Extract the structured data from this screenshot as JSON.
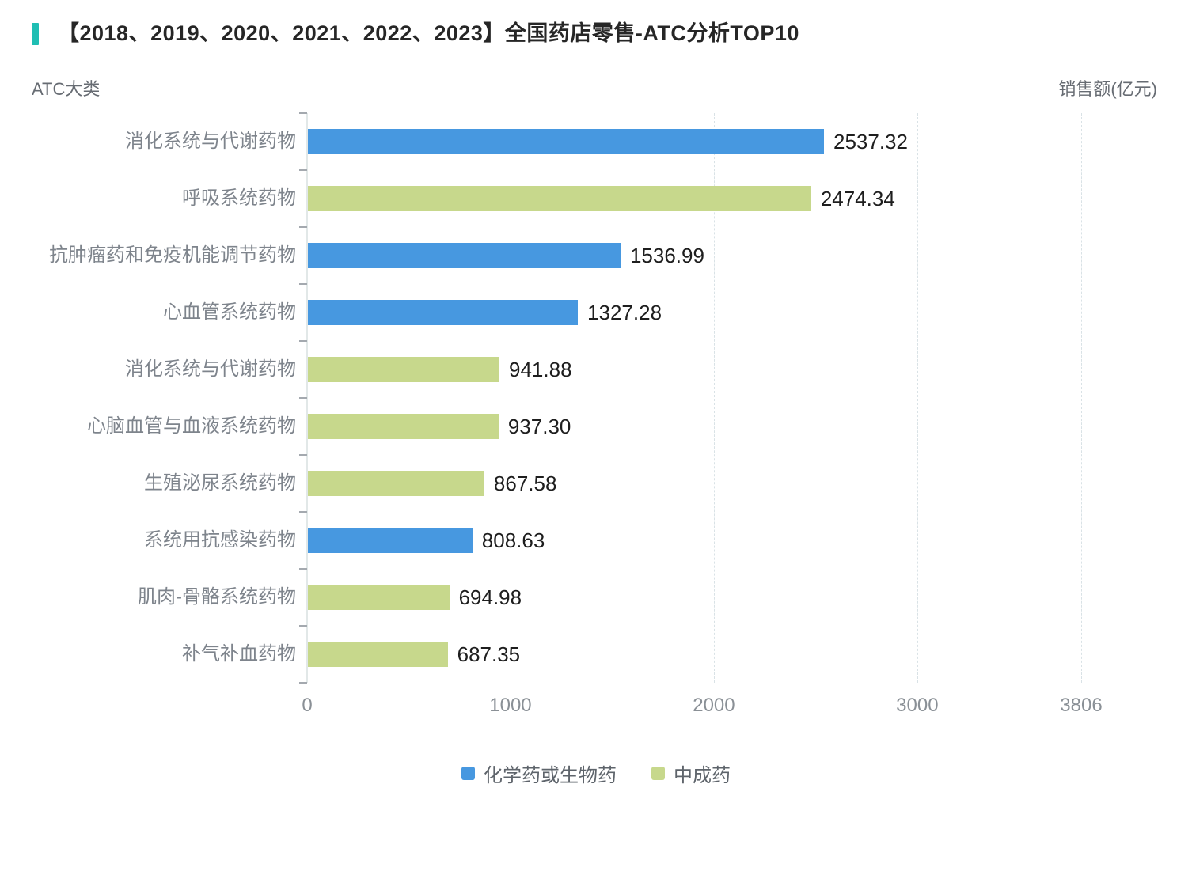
{
  "header": {
    "title": "【2018、2019、2020、2021、2022、2023】全国药店零售-ATC分析TOP10",
    "accent_color": "#1FBEB3"
  },
  "chart_data": {
    "type": "bar",
    "orientation": "horizontal",
    "ylabel": "ATC大类",
    "xlabel": "销售额(亿元)",
    "xlim": [
      0,
      3806
    ],
    "x_ticks": [
      0,
      1000,
      2000,
      3000,
      3806
    ],
    "grid": "dashed-vertical",
    "legend_position": "bottom",
    "series": [
      {
        "name": "化学药或生物药",
        "color": "#4798E0"
      },
      {
        "name": "中成药",
        "color": "#C7D88C"
      }
    ],
    "bars": [
      {
        "category": "消化系统与代谢药物",
        "value": 2537.32,
        "value_label": "2537.32",
        "series": "化学药或生物药"
      },
      {
        "category": "呼吸系统药物",
        "value": 2474.34,
        "value_label": "2474.34",
        "series": "中成药"
      },
      {
        "category": "抗肿瘤药和免疫机能调节药物",
        "value": 1536.99,
        "value_label": "1536.99",
        "series": "化学药或生物药"
      },
      {
        "category": "心血管系统药物",
        "value": 1327.28,
        "value_label": "1327.28",
        "series": "化学药或生物药"
      },
      {
        "category": "消化系统与代谢药物",
        "value": 941.88,
        "value_label": "941.88",
        "series": "中成药"
      },
      {
        "category": "心脑血管与血液系统药物",
        "value": 937.3,
        "value_label": "937.30",
        "series": "中成药"
      },
      {
        "category": "生殖泌尿系统药物",
        "value": 867.58,
        "value_label": "867.58",
        "series": "中成药"
      },
      {
        "category": "系统用抗感染药物",
        "value": 808.63,
        "value_label": "808.63",
        "series": "化学药或生物药"
      },
      {
        "category": "肌肉-骨骼系统药物",
        "value": 694.98,
        "value_label": "694.98",
        "series": "中成药"
      },
      {
        "category": "补气补血药物",
        "value": 687.35,
        "value_label": "687.35",
        "series": "中成药"
      }
    ]
  },
  "style_colors": {
    "grid_line": "#D9E2E6",
    "axis_line": "#E2E8E8",
    "tick_mark": "#A4A9AF",
    "category_label": "#7E848C",
    "value_label": "#1E1E1E",
    "x_tick_label": "#8A9096",
    "legend_text": "#5E646B"
  }
}
